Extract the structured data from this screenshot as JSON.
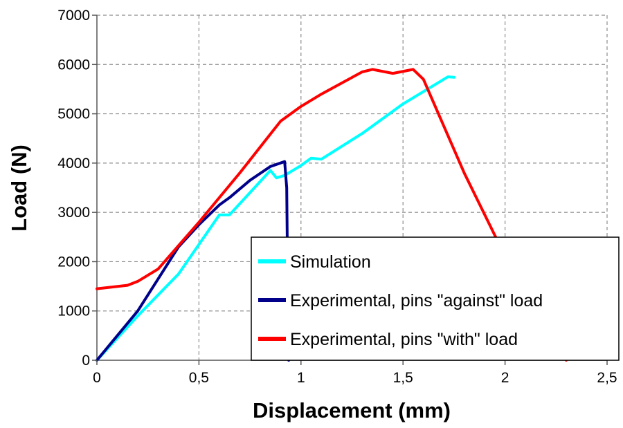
{
  "chart_data": {
    "type": "line",
    "xlabel": "Displacement (mm)",
    "ylabel": "Load (N)",
    "xlim": [
      0,
      2.5
    ],
    "ylim": [
      0,
      7000
    ],
    "xticks": [
      0,
      0.5,
      1,
      1.5,
      2,
      2.5
    ],
    "xtick_labels": [
      "0",
      "0,5",
      "1",
      "1,5",
      "2",
      "2,5"
    ],
    "yticks": [
      0,
      1000,
      2000,
      3000,
      4000,
      5000,
      6000,
      7000
    ],
    "ytick_labels": [
      "0",
      "1000",
      "2000",
      "3000",
      "4000",
      "5000",
      "6000",
      "7000"
    ],
    "grid": true,
    "legend_position": "lower-right",
    "series": [
      {
        "name": "Simulation",
        "color": "#00FFFF",
        "points": [
          [
            0,
            0
          ],
          [
            0.2,
            900
          ],
          [
            0.4,
            1750
          ],
          [
            0.6,
            2950
          ],
          [
            0.65,
            2950
          ],
          [
            0.75,
            3400
          ],
          [
            0.85,
            3850
          ],
          [
            0.88,
            3700
          ],
          [
            0.92,
            3750
          ],
          [
            1.0,
            3950
          ],
          [
            1.05,
            4100
          ],
          [
            1.1,
            4080
          ],
          [
            1.3,
            4600
          ],
          [
            1.5,
            5200
          ],
          [
            1.72,
            5750
          ],
          [
            1.75,
            5740
          ]
        ]
      },
      {
        "name": "Experimental, pins \"against\" load",
        "color": "#00008B",
        "points": [
          [
            0,
            0
          ],
          [
            0.2,
            1000
          ],
          [
            0.4,
            2300
          ],
          [
            0.5,
            2750
          ],
          [
            0.6,
            3150
          ],
          [
            0.65,
            3300
          ],
          [
            0.75,
            3650
          ],
          [
            0.85,
            3930
          ],
          [
            0.92,
            4030
          ],
          [
            0.93,
            3500
          ],
          [
            0.935,
            1500
          ],
          [
            0.94,
            0
          ]
        ]
      },
      {
        "name": "Experimental, pins \"with\" load",
        "color": "#FF0000",
        "points": [
          [
            0,
            1450
          ],
          [
            0.15,
            1520
          ],
          [
            0.2,
            1600
          ],
          [
            0.3,
            1850
          ],
          [
            0.5,
            2800
          ],
          [
            0.7,
            3800
          ],
          [
            0.9,
            4850
          ],
          [
            1.0,
            5150
          ],
          [
            1.1,
            5400
          ],
          [
            1.3,
            5850
          ],
          [
            1.35,
            5900
          ],
          [
            1.45,
            5820
          ],
          [
            1.55,
            5900
          ],
          [
            1.6,
            5700
          ],
          [
            1.8,
            3800
          ],
          [
            1.96,
            2450
          ],
          [
            2.1,
            1300
          ],
          [
            2.2,
            500
          ],
          [
            2.3,
            0
          ]
        ]
      }
    ]
  }
}
